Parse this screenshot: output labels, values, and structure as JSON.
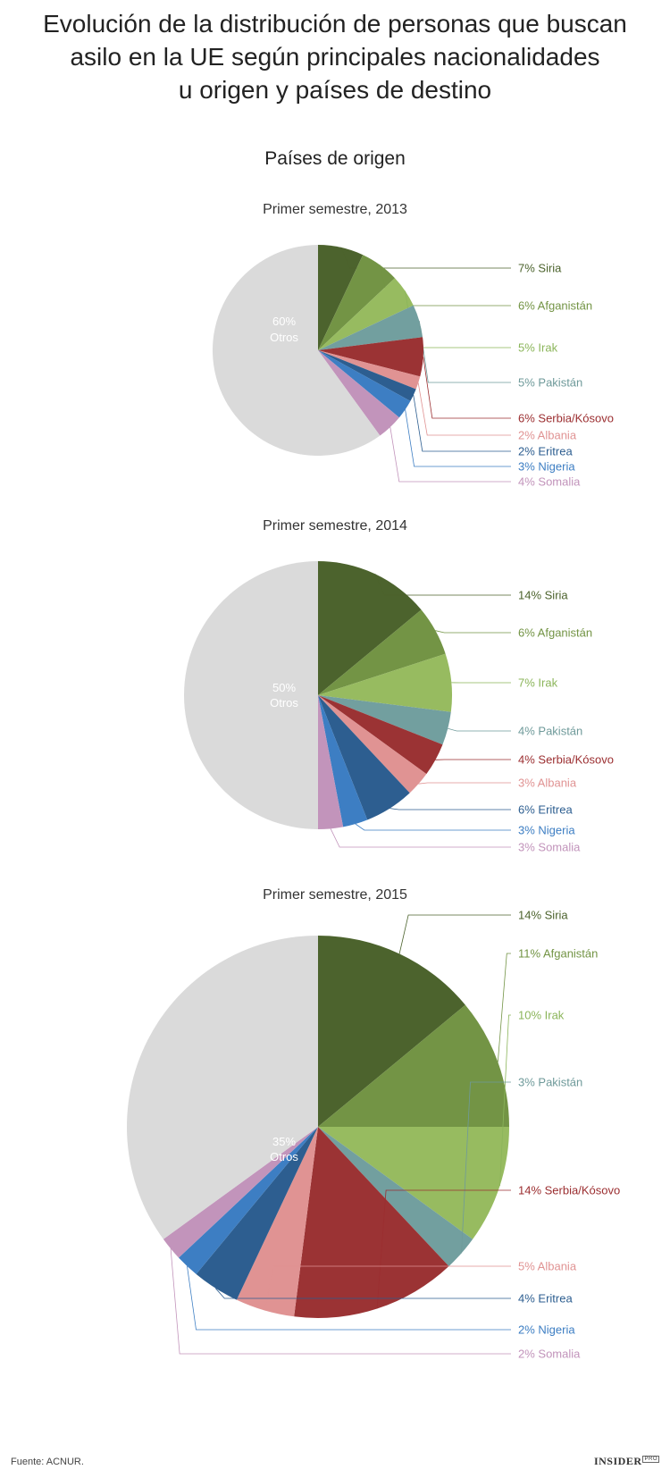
{
  "title_lines": [
    "Evolución de la distribución de personas que buscan",
    "asilo en la UE según principales nacionalidades",
    "u origen y países de destino"
  ],
  "subtitle": "Países de origen",
  "source": "Fuente: ACNUR.",
  "logo": "INSIDER",
  "logo_badge": "PRO",
  "colors": {
    "Siria": "#4c632d",
    "Afganistán": "#739445",
    "Irak": "#97bb60",
    "Pakistán": "#729f9f",
    "Serbia/Kósovo": "#9b3334",
    "Albania": "#e09393",
    "Eritrea": "#2d5e90",
    "Nigeria": "#3d7ec3",
    "Somalia": "#c294bb",
    "Otros": "#dadada"
  },
  "label_colors": {
    "Siria": "#4c632d",
    "Afganistán": "#739445",
    "Irak": "#8bb55a",
    "Pakistán": "#6f9a9a",
    "Serbia/Kósovo": "#9b2e30",
    "Albania": "#e09393",
    "Eritrea": "#2d5e90",
    "Nigeria": "#3d7ec3",
    "Somalia": "#c294bb"
  },
  "chart_data": [
    {
      "type": "pie",
      "title": "Primer semestre, 2013",
      "slices": [
        {
          "name": "Siria",
          "value": 7,
          "label": "7% Siria"
        },
        {
          "name": "Afganistán",
          "value": 6,
          "label": "6% Afganistán"
        },
        {
          "name": "Irak",
          "value": 5,
          "label": "5% Irak"
        },
        {
          "name": "Pakistán",
          "value": 5,
          "label": "5% Pakistán"
        },
        {
          "name": "Serbia/Kósovo",
          "value": 6,
          "label": "6% Serbia/Kósovo"
        },
        {
          "name": "Albania",
          "value": 2,
          "label": "2% Albania"
        },
        {
          "name": "Eritrea",
          "value": 2,
          "label": "2% Eritrea"
        },
        {
          "name": "Nigeria",
          "value": 3,
          "label": "3% Nigeria"
        },
        {
          "name": "Somalia",
          "value": 4,
          "label": "4% Somalia"
        },
        {
          "name": "Otros",
          "value": 60,
          "pct_label": "60%",
          "name_label": "Otros"
        }
      ]
    },
    {
      "type": "pie",
      "title": "Primer semestre, 2014",
      "slices": [
        {
          "name": "Siria",
          "value": 14,
          "label": "14% Siria"
        },
        {
          "name": "Afganistán",
          "value": 6,
          "label": "6% Afganistán"
        },
        {
          "name": "Irak",
          "value": 7,
          "label": "7% Irak"
        },
        {
          "name": "Pakistán",
          "value": 4,
          "label": "4% Pakistán"
        },
        {
          "name": "Serbia/Kósovo",
          "value": 4,
          "label": "4% Serbia/Kósovo"
        },
        {
          "name": "Albania",
          "value": 3,
          "label": "3% Albania"
        },
        {
          "name": "Eritrea",
          "value": 6,
          "label": "6% Eritrea"
        },
        {
          "name": "Nigeria",
          "value": 3,
          "label": "3% Nigeria"
        },
        {
          "name": "Somalia",
          "value": 3,
          "label": "3% Somalia"
        },
        {
          "name": "Otros",
          "value": 50,
          "pct_label": "50%",
          "name_label": "Otros"
        }
      ]
    },
    {
      "type": "pie",
      "title": "Primer semestre, 2015",
      "slices": [
        {
          "name": "Siria",
          "value": 14,
          "label": "14% Siria"
        },
        {
          "name": "Afganistán",
          "value": 11,
          "label": "11% Afganistán"
        },
        {
          "name": "Irak",
          "value": 10,
          "label": "10% Irak"
        },
        {
          "name": "Pakistán",
          "value": 3,
          "label": "3% Pakistán"
        },
        {
          "name": "Serbia/Kósovo",
          "value": 14,
          "label": "14% Serbia/Kósovo"
        },
        {
          "name": "Albania",
          "value": 5,
          "label": "5% Albania"
        },
        {
          "name": "Eritrea",
          "value": 4,
          "label": "4% Eritrea"
        },
        {
          "name": "Nigeria",
          "value": 2,
          "label": "2% Nigeria"
        },
        {
          "name": "Somalia",
          "value": 2,
          "label": "2% Somalia"
        },
        {
          "name": "Otros",
          "value": 35,
          "pct_label": "35%",
          "name_label": "Otros"
        }
      ]
    }
  ]
}
